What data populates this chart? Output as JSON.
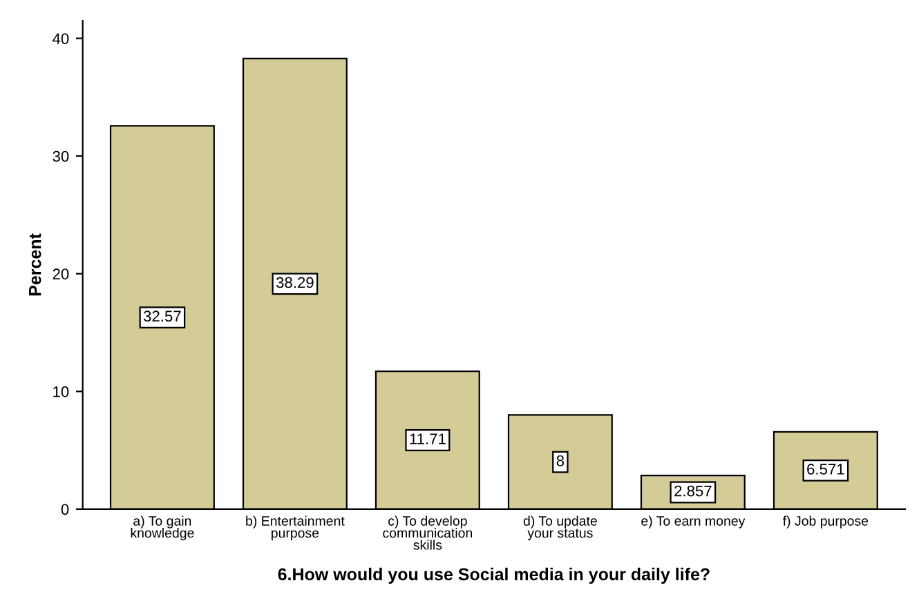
{
  "chart_data": {
    "type": "bar",
    "xlabel": "6.How would you use Social media in your daily life?",
    "ylabel": "Percent",
    "categories": [
      "a) To gain\nknowledge",
      "b) Entertainment\npurpose",
      "c) To develop\ncommunication\nskills",
      "d) To update\nyour status",
      "e) To earn money",
      "f) Job purpose"
    ],
    "values": [
      32.57,
      38.29,
      11.71,
      8,
      2.857,
      6.571
    ],
    "color": "#d4cc96",
    "ylim": [
      0,
      41.5
    ],
    "yticks": [
      0,
      10,
      20,
      30,
      40
    ],
    "grid": false,
    "data_labels": true
  }
}
